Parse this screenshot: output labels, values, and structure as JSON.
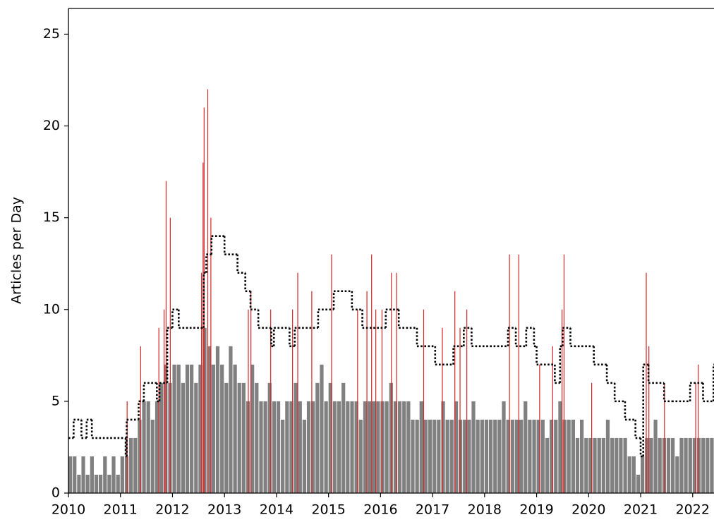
{
  "chart_data": {
    "type": "bar",
    "ylabel": "Articles per Day",
    "xlim": [
      2010,
      2022.41
    ],
    "ylim": [
      0,
      26.4
    ],
    "xticks": [
      2010,
      2011,
      2012,
      2013,
      2014,
      2015,
      2016,
      2017,
      2018,
      2019,
      2020,
      2021,
      2022
    ],
    "yticks": [
      0,
      5,
      10,
      15,
      20,
      25
    ],
    "bars": {
      "color": "#808080",
      "x": [
        2010,
        2010.083,
        2010.167,
        2010.25,
        2010.333,
        2010.417,
        2010.5,
        2010.583,
        2010.667,
        2010.75,
        2010.833,
        2010.917,
        2011,
        2011.083,
        2011.167,
        2011.25,
        2011.333,
        2011.417,
        2011.5,
        2011.583,
        2011.667,
        2011.75,
        2011.833,
        2011.917,
        2012,
        2012.083,
        2012.167,
        2012.25,
        2012.333,
        2012.417,
        2012.5,
        2012.583,
        2012.667,
        2012.75,
        2012.833,
        2012.917,
        2013,
        2013.083,
        2013.167,
        2013.25,
        2013.333,
        2013.417,
        2013.5,
        2013.583,
        2013.667,
        2013.75,
        2013.833,
        2013.917,
        2014,
        2014.083,
        2014.167,
        2014.25,
        2014.333,
        2014.417,
        2014.5,
        2014.583,
        2014.667,
        2014.75,
        2014.833,
        2014.917,
        2015,
        2015.083,
        2015.167,
        2015.25,
        2015.333,
        2015.417,
        2015.5,
        2015.583,
        2015.667,
        2015.75,
        2015.833,
        2015.917,
        2016,
        2016.083,
        2016.167,
        2016.25,
        2016.333,
        2016.417,
        2016.5,
        2016.583,
        2016.667,
        2016.75,
        2016.833,
        2016.917,
        2017,
        2017.083,
        2017.167,
        2017.25,
        2017.333,
        2017.417,
        2017.5,
        2017.583,
        2017.667,
        2017.75,
        2017.833,
        2017.917,
        2018,
        2018.083,
        2018.167,
        2018.25,
        2018.333,
        2018.417,
        2018.5,
        2018.583,
        2018.667,
        2018.75,
        2018.833,
        2018.917,
        2019,
        2019.083,
        2019.167,
        2019.25,
        2019.333,
        2019.417,
        2019.5,
        2019.583,
        2019.667,
        2019.75,
        2019.833,
        2019.917,
        2020,
        2020.083,
        2020.167,
        2020.25,
        2020.333,
        2020.417,
        2020.5,
        2020.583,
        2020.667,
        2020.75,
        2020.833,
        2020.917,
        2021,
        2021.083,
        2021.167,
        2021.25,
        2021.333,
        2021.417,
        2021.5,
        2021.583,
        2021.667,
        2021.75,
        2021.833,
        2021.917,
        2022,
        2022.083,
        2022.167,
        2022.25,
        2022.333
      ],
      "values": [
        2,
        2,
        1,
        2,
        1,
        2,
        1,
        1,
        2,
        1,
        2,
        1,
        2,
        2,
        3,
        3,
        4,
        5,
        5,
        4,
        5,
        6,
        7,
        6,
        7,
        7,
        6,
        7,
        7,
        6,
        7,
        9,
        8,
        7,
        8,
        7,
        6,
        8,
        7,
        6,
        6,
        5,
        7,
        6,
        5,
        5,
        6,
        5,
        5,
        4,
        5,
        5,
        6,
        5,
        4,
        5,
        5,
        6,
        7,
        5,
        6,
        5,
        5,
        6,
        5,
        5,
        5,
        4,
        5,
        5,
        5,
        5,
        5,
        5,
        6,
        5,
        5,
        5,
        5,
        4,
        4,
        5,
        4,
        4,
        4,
        4,
        5,
        4,
        4,
        5,
        4,
        4,
        4,
        5,
        4,
        4,
        4,
        4,
        4,
        4,
        5,
        4,
        4,
        4,
        4,
        5,
        4,
        4,
        4,
        4,
        3,
        4,
        4,
        5,
        4,
        4,
        4,
        3,
        4,
        3,
        3,
        3,
        3,
        3,
        4,
        3,
        3,
        3,
        3,
        2,
        2,
        1,
        2,
        3,
        3,
        4,
        3,
        3,
        3,
        3,
        2,
        3,
        3,
        3,
        3,
        3,
        3,
        3,
        3
      ]
    },
    "spikes": {
      "color": "#d62728",
      "x": [
        2011.12,
        2011.38,
        2011.73,
        2011.83,
        2011.87,
        2011.95,
        2012.55,
        2012.58,
        2012.6,
        2012.67,
        2012.73,
        2013.45,
        2013.5,
        2013.88,
        2014.3,
        2014.4,
        2014.67,
        2015.05,
        2015.55,
        2015.73,
        2015.82,
        2015.9,
        2016.02,
        2016.2,
        2016.3,
        2016.82,
        2017.18,
        2017.42,
        2017.52,
        2017.65,
        2018.47,
        2018.65,
        2019.05,
        2019.3,
        2019.48,
        2019.52,
        2020.05,
        2021.1,
        2021.15,
        2021.45,
        2022.05,
        2022.1
      ],
      "values": [
        5,
        8,
        9,
        10,
        17,
        15,
        12,
        18,
        21,
        22,
        15,
        10,
        11,
        10,
        10,
        12,
        11,
        13,
        10,
        11,
        13,
        10,
        10,
        12,
        12,
        10,
        9,
        11,
        9,
        10,
        13,
        13,
        7,
        8,
        10,
        13,
        6,
        12,
        8,
        6,
        6,
        7
      ]
    },
    "threshold": {
      "color": "#000000",
      "x": [
        2010,
        2010.1,
        2010.25,
        2010.35,
        2010.45,
        2011.1,
        2011.12,
        2011.35,
        2011.45,
        2011.7,
        2011.75,
        2011.9,
        2012,
        2012.12,
        2012.6,
        2012.65,
        2012.75,
        2013,
        2013.25,
        2013.4,
        2013.5,
        2013.65,
        2013.9,
        2013.95,
        2014.25,
        2014.35,
        2014.8,
        2015.1,
        2015.45,
        2015.65,
        2016.1,
        2016.35,
        2016.7,
        2017.05,
        2017.4,
        2017.6,
        2017.75,
        2018.45,
        2018.6,
        2018.8,
        2018.95,
        2019,
        2019.35,
        2019.45,
        2019.5,
        2019.65,
        2020.1,
        2020.35,
        2020.5,
        2020.7,
        2020.9,
        2021,
        2021.05,
        2021.15,
        2021.45,
        2021.6,
        2021.95,
        2022.2,
        2022.4
      ],
      "values": [
        3,
        4,
        3,
        4,
        3,
        2,
        4,
        5,
        6,
        5,
        6,
        9,
        10,
        9,
        12,
        13,
        14,
        13,
        12,
        11,
        10,
        9,
        8,
        9,
        8,
        9,
        10,
        11,
        10,
        9,
        10,
        9,
        8,
        7,
        8,
        9,
        8,
        9,
        8,
        9,
        8,
        7,
        6,
        8,
        9,
        8,
        7,
        6,
        5,
        4,
        3,
        2,
        7,
        6,
        5,
        5,
        6,
        5,
        7
      ]
    }
  }
}
